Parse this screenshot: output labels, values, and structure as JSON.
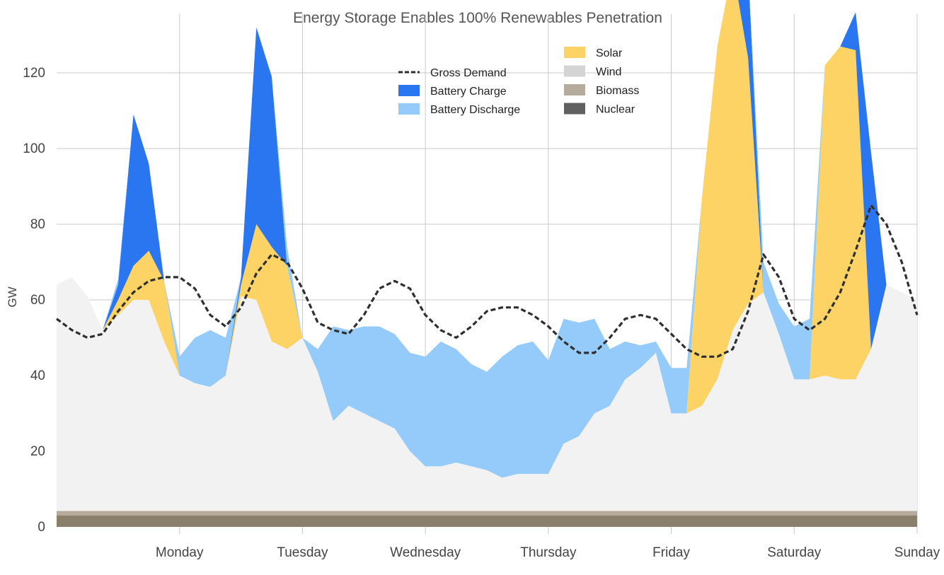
{
  "chart_data": {
    "type": "area",
    "title": "Energy Storage Enables 100% Renewables Penetration",
    "xlabel": "",
    "ylabel": "GW",
    "ylim": [
      0,
      130
    ],
    "yticks": [
      0,
      20,
      40,
      60,
      80,
      100,
      120
    ],
    "day_labels": [
      "Monday",
      "Tuesday",
      "Wednesday",
      "Thursday",
      "Friday",
      "Saturday",
      "Sunday"
    ],
    "grid": true,
    "legend_placement": "top-center",
    "x_hours": [
      0,
      3,
      6,
      9,
      12,
      15,
      18,
      21,
      24,
      27,
      30,
      33,
      36,
      39,
      42,
      45,
      48,
      51,
      54,
      57,
      60,
      63,
      66,
      69,
      72,
      75,
      78,
      81,
      84,
      87,
      90,
      93,
      96,
      99,
      102,
      105,
      108,
      111,
      114,
      117,
      120,
      123,
      126,
      129,
      132,
      135,
      138,
      141,
      144,
      147,
      150,
      153,
      156,
      159,
      162,
      165,
      168
    ],
    "series": [
      {
        "name": "Nuclear",
        "color": "#8a7f6a",
        "values": [
          3.0,
          3.0,
          3.0,
          3.0,
          3.0,
          3.0,
          3.0,
          3.0,
          3.0,
          3.0,
          3.0,
          3.0,
          3.0,
          3.0,
          3.0,
          3.0,
          3.0,
          3.0,
          3.0,
          3.0,
          3.0,
          3.0,
          3.0,
          3.0,
          3.0,
          3.0,
          3.0,
          3.0,
          3.0,
          3.0,
          3.0,
          3.0,
          3.0,
          3.0,
          3.0,
          3.0,
          3.0,
          3.0,
          3.0,
          3.0,
          3.0,
          3.0,
          3.0,
          3.0,
          3.0,
          3.0,
          3.0,
          3.0,
          3.0,
          3.0,
          3.0,
          3.0,
          3.0,
          3.0,
          3.0,
          3.0,
          3.0
        ]
      },
      {
        "name": "Biomass",
        "color": "#b6aa9c",
        "values": [
          1.2,
          1.2,
          1.2,
          1.2,
          1.2,
          1.2,
          1.2,
          1.2,
          1.2,
          1.2,
          1.2,
          1.2,
          1.2,
          1.2,
          1.2,
          1.2,
          1.2,
          1.2,
          1.2,
          1.2,
          1.2,
          1.2,
          1.2,
          1.2,
          1.2,
          1.2,
          1.2,
          1.2,
          1.2,
          1.2,
          1.2,
          1.2,
          1.2,
          1.2,
          1.2,
          1.2,
          1.2,
          1.2,
          1.2,
          1.2,
          1.2,
          1.2,
          1.2,
          1.2,
          1.2,
          1.2,
          1.2,
          1.2,
          1.2,
          1.2,
          1.2,
          1.2,
          1.2,
          1.2,
          1.2,
          1.2,
          1.2
        ]
      },
      {
        "name": "Wind",
        "color": "#f2f2f2",
        "values": [
          59.8,
          61.8,
          56.8,
          47.8,
          51.8,
          55.8,
          55.8,
          44.8,
          35.8,
          33.8,
          32.8,
          35.8,
          56.8,
          55.8,
          44.8,
          42.8,
          45.8,
          36.8,
          23.8,
          27.8,
          25.8,
          23.8,
          21.8,
          15.8,
          11.8,
          11.8,
          12.8,
          11.8,
          10.8,
          8.8,
          9.8,
          9.8,
          9.8,
          17.8,
          19.8,
          25.8,
          27.8,
          34.8,
          37.8,
          41.8,
          25.8,
          25.8,
          27.8,
          34.8,
          47.8,
          54.8,
          57.8,
          46.8,
          34.8,
          34.8,
          35.8,
          34.8,
          34.8,
          42.8,
          59.8,
          57.8,
          55.8
        ]
      },
      {
        "name": "Solar",
        "color": "#fed366",
        "values": [
          0,
          0,
          0,
          0,
          4,
          9,
          13,
          16,
          0,
          0,
          0,
          0,
          3,
          20,
          25,
          22,
          0,
          0,
          0,
          0,
          0,
          0,
          0,
          0,
          0,
          0,
          0,
          0,
          0,
          0,
          0,
          0,
          0,
          0,
          0,
          0,
          0,
          0,
          0,
          0,
          0,
          0,
          55,
          88,
          96,
          65,
          0,
          0,
          0,
          0,
          82,
          88,
          87,
          0,
          0,
          0,
          0
        ]
      },
      {
        "name": "Battery Charge",
        "color": "#2a75f0",
        "values": [
          0,
          0,
          0,
          0,
          4,
          40,
          23,
          0,
          0,
          0,
          0,
          0,
          2,
          52,
          45,
          0,
          0,
          0,
          0,
          0,
          0,
          0,
          0,
          0,
          0,
          0,
          0,
          0,
          0,
          0,
          0,
          0,
          0,
          0,
          0,
          0,
          0,
          0,
          0,
          0,
          0,
          0,
          0,
          0,
          0,
          24,
          0,
          0,
          0,
          0,
          0,
          0,
          10,
          52,
          0,
          0,
          0
        ]
      },
      {
        "name": "Battery Discharge",
        "color": "#95cbfb",
        "values": [
          0,
          0,
          0,
          0,
          1.5,
          0,
          0,
          0,
          5,
          12,
          15,
          10,
          0,
          0,
          0,
          5,
          0,
          6,
          25,
          20,
          23,
          25,
          25,
          26,
          29,
          33,
          30,
          27,
          26,
          32,
          34,
          35,
          30,
          33,
          30,
          25,
          15,
          10,
          6,
          3,
          12,
          12,
          0,
          0,
          0,
          0,
          8,
          8,
          14,
          16,
          0,
          0,
          0,
          0,
          0,
          0,
          0
        ]
      },
      {
        "name": "Gross Demand",
        "color": "#2f2f2f",
        "style": "dashed",
        "values": [
          55,
          52,
          50,
          51,
          57,
          62,
          65,
          66,
          66,
          63,
          56,
          53,
          58,
          67,
          72,
          70,
          63,
          54,
          52,
          51,
          56,
          63,
          65,
          63,
          56,
          52,
          50,
          53,
          57,
          58,
          58,
          56,
          53,
          49,
          46,
          46,
          50,
          55,
          56,
          55,
          51,
          47,
          45,
          45,
          47,
          57,
          72,
          66,
          55,
          52,
          55,
          62,
          73,
          85,
          80,
          70,
          56
        ]
      }
    ]
  }
}
